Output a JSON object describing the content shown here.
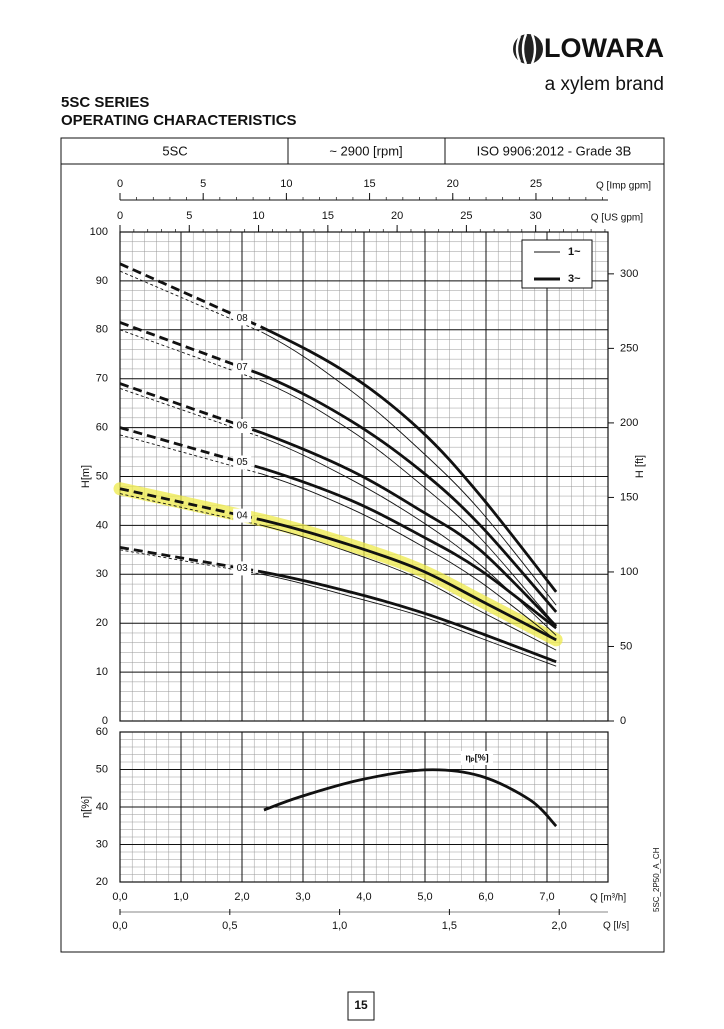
{
  "header": {
    "brand": "LOWARA",
    "tagline": "a xylem brand",
    "title_1": "5SC SERIES",
    "title_2": "OPERATING CHARACTERISTICS"
  },
  "table_header": [
    "5SC",
    "~ 2900 [rpm]",
    "ISO 9906:2012 - Grade 3B"
  ],
  "chart_data": [
    {
      "type": "line",
      "dashed_until": 1,
      "x": [
        0,
        2.33,
        3.77,
        4.92,
        5.9,
        7.15
      ],
      "xlim": [
        0,
        8
      ],
      "minor_x_step": 0.2,
      "x3label": "Q [US gpm]",
      "x3lim": [
        0,
        35.22
      ],
      "x3ticks": [
        0,
        5,
        10,
        15,
        20,
        25,
        30
      ],
      "x4label": "Q [Imp gpm]",
      "x4lim": [
        0,
        29.33
      ],
      "x4ticks": [
        0,
        5,
        10,
        15,
        20,
        25
      ],
      "minor_tick_step": 1,
      "ylabel": "H[m]",
      "ylim": [
        0,
        100
      ],
      "yticks": [
        0,
        10,
        20,
        30,
        40,
        50,
        60,
        70,
        80,
        90,
        100
      ],
      "minor_y_step": 2,
      "y2label": "H [ft]",
      "y2lim": [
        0,
        328.08
      ],
      "y2ticks": [
        0,
        50,
        100,
        150,
        200,
        250,
        300
      ],
      "legend": [
        "1~",
        "3~"
      ],
      "color": "#111111",
      "highlight": 1,
      "highlight_color": "#eeea4a",
      "series": [
        {
          "name": "03",
          "values": [
            35.5,
            30.5,
            26.4,
            22.3,
            18,
            12.1
          ],
          "values_1": [
            35,
            30,
            25.5,
            21.5,
            17,
            11.2
          ]
        },
        {
          "name": "04",
          "values": [
            47.5,
            41.1,
            36,
            30.9,
            24.7,
            16.6
          ],
          "values_1": [
            46.5,
            40,
            34.5,
            29,
            22.5,
            14.5
          ]
        },
        {
          "name": "05",
          "values": [
            60,
            51.7,
            45.2,
            38,
            30.9,
            19
          ],
          "values_1": [
            58.5,
            50.5,
            43.5,
            36,
            28.5,
            16.5
          ]
        },
        {
          "name": "06",
          "values": [
            69,
            58.9,
            51.3,
            43.1,
            35,
            19.4
          ],
          "values_1": [
            68,
            58,
            49.5,
            41,
            32,
            17.5
          ]
        },
        {
          "name": "07",
          "values": [
            81.5,
            70.8,
            61.5,
            51.3,
            40.1,
            22.3
          ],
          "values_1": [
            80,
            69.5,
            59.5,
            48.5,
            37.5,
            19.5
          ]
        },
        {
          "name": "08",
          "values": [
            93.5,
            80.5,
            70.8,
            59.5,
            46.2,
            26.4
          ],
          "values_1": [
            92,
            79.5,
            67.7,
            55.4,
            43.1,
            23.7
          ]
        }
      ]
    },
    {
      "type": "line",
      "curve_label": "ηₚ[%]",
      "x": [
        2.36,
        2.95,
        3.93,
        5.0,
        5.9,
        6.72,
        7.15
      ],
      "values": [
        39.2,
        42.7,
        47.2,
        49.9,
        48.3,
        41.9,
        34.9
      ],
      "color": "#111111",
      "xlim": [
        0,
        8
      ],
      "minor_x_step": 0.2,
      "xlabel": "Q [m³/h]",
      "xticks": [
        {
          "value": 0,
          "label": "0,0"
        },
        {
          "value": 1,
          "label": "1,0"
        },
        {
          "value": 2,
          "label": "2,0"
        },
        {
          "value": 3,
          "label": "3,0"
        },
        {
          "value": 4,
          "label": "4,0"
        },
        {
          "value": 5,
          "label": "5,0"
        },
        {
          "value": 6,
          "label": "6,0"
        },
        {
          "value": 7,
          "label": "7,0"
        }
      ],
      "x2label": "Q [l/s]",
      "x2lim": [
        0,
        2.2222
      ],
      "x2ticks": [
        {
          "value": 0,
          "label": "0,0"
        },
        {
          "value": 0.5,
          "label": "0,5"
        },
        {
          "value": 1,
          "label": "1,0"
        },
        {
          "value": 1.5,
          "label": "1,5"
        },
        {
          "value": 2,
          "label": "2,0"
        }
      ],
      "ylabel": "η[%]",
      "ylim": [
        20,
        60
      ],
      "yticks": [
        20,
        30,
        40,
        50,
        60
      ],
      "minor_y_step": 2
    }
  ],
  "code": "5SC_2P50_A_CH",
  "page_number": 15
}
